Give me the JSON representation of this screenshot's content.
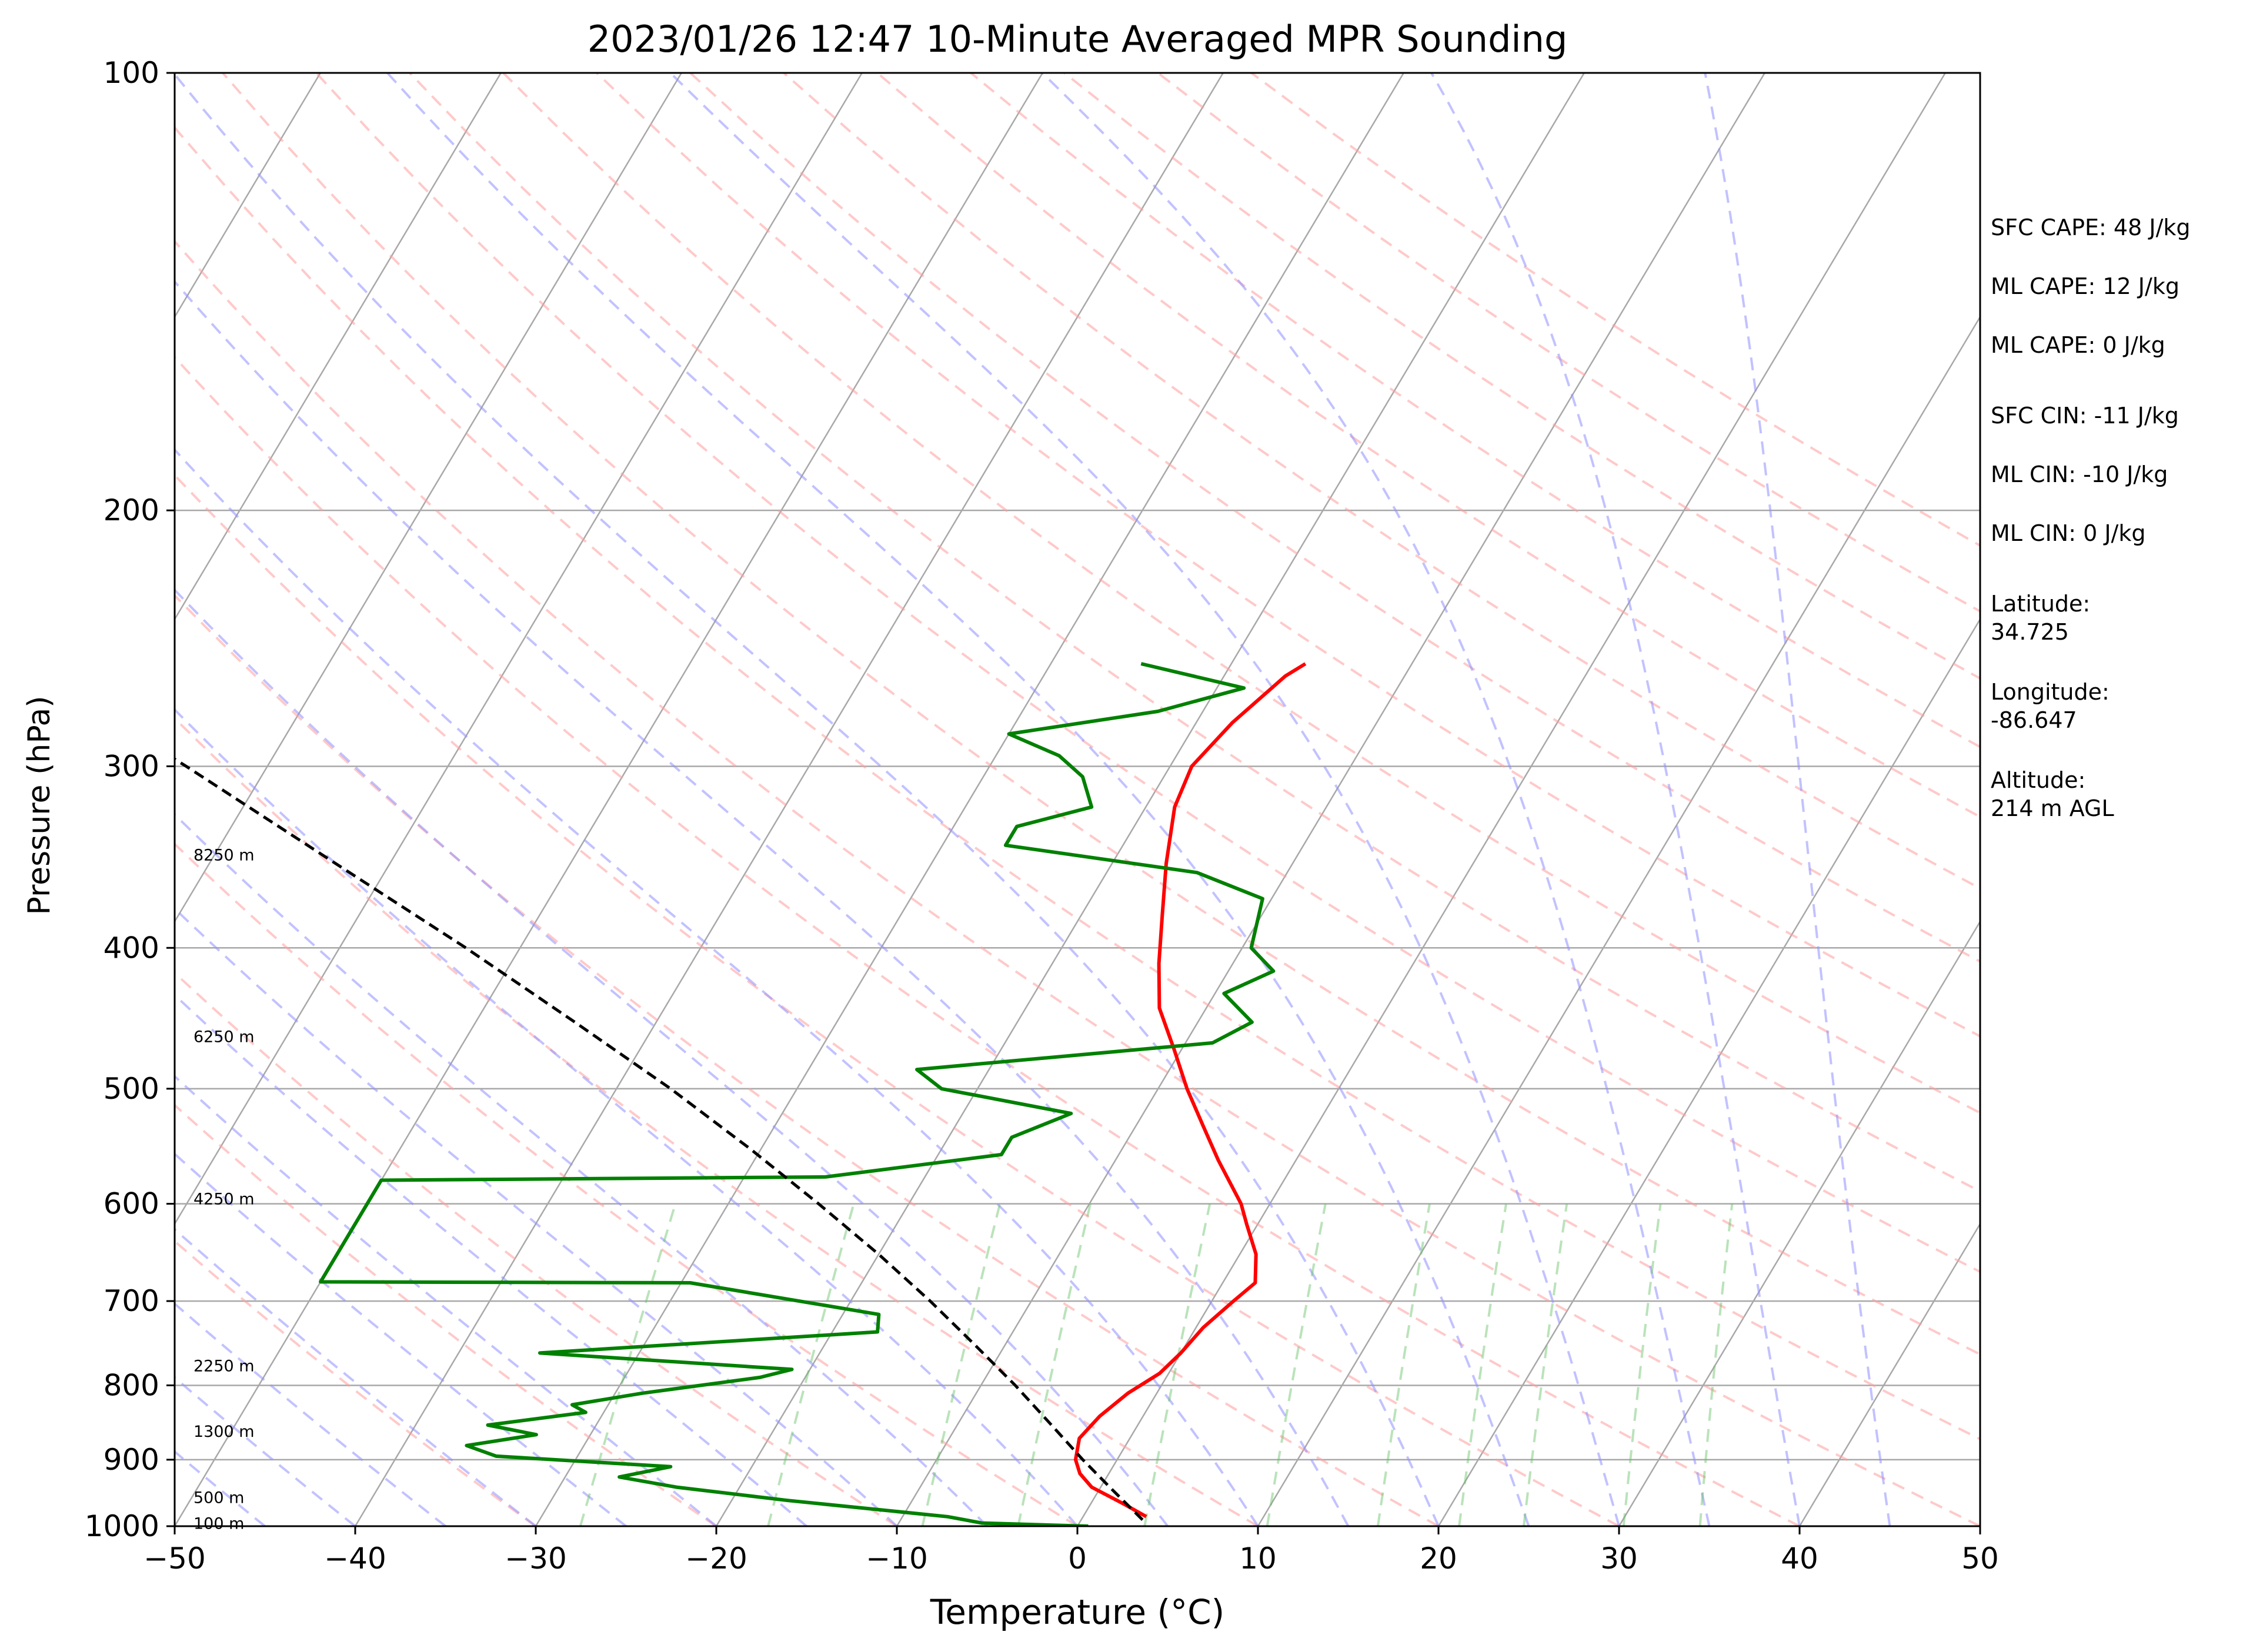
{
  "chart_data": {
    "type": "line",
    "title": "2023/01/26 12:47 10-Minute Averaged MPR Sounding",
    "xlabel": "Temperature (°C)",
    "ylabel": "Pressure (hPa)",
    "xlim": [
      -50,
      50
    ],
    "ylim": [
      1000,
      100
    ],
    "y_scale": "log",
    "skew": true,
    "grid": true,
    "x_ticks": [
      -50,
      -40,
      -30,
      -20,
      -10,
      0,
      10,
      20,
      30,
      40,
      50
    ],
    "y_ticks": [
      100,
      200,
      300,
      400,
      500,
      600,
      700,
      800,
      900,
      1000
    ],
    "series": [
      {
        "color": "#ff0000",
        "points": [
          {
            "p": 985,
            "t": 3.5
          },
          {
            "p": 965,
            "t": 1.8
          },
          {
            "p": 940,
            "t": -0.5
          },
          {
            "p": 920,
            "t": -1.6
          },
          {
            "p": 900,
            "t": -2.3
          },
          {
            "p": 870,
            "t": -2.8
          },
          {
            "p": 840,
            "t": -2.4
          },
          {
            "p": 810,
            "t": -1.6
          },
          {
            "p": 785,
            "t": -0.5
          },
          {
            "p": 760,
            "t": 0.0
          },
          {
            "p": 730,
            "t": 0.4
          },
          {
            "p": 700,
            "t": 1.2
          },
          {
            "p": 680,
            "t": 1.8
          },
          {
            "p": 650,
            "t": 0.9
          },
          {
            "p": 620,
            "t": -0.6
          },
          {
            "p": 600,
            "t": -1.6
          },
          {
            "p": 560,
            "t": -4.3
          },
          {
            "p": 530,
            "t": -6.3
          },
          {
            "p": 500,
            "t": -8.4
          },
          {
            "p": 470,
            "t": -10.4
          },
          {
            "p": 440,
            "t": -12.6
          },
          {
            "p": 410,
            "t": -14.1
          },
          {
            "p": 380,
            "t": -15.5
          },
          {
            "p": 350,
            "t": -17.0
          },
          {
            "p": 320,
            "t": -18.4
          },
          {
            "p": 300,
            "t": -18.8
          },
          {
            "p": 280,
            "t": -18.0
          },
          {
            "p": 260,
            "t": -16.6
          },
          {
            "p": 255,
            "t": -15.9
          }
        ]
      },
      {
        "color": "#008000",
        "points": [
          {
            "p": 1000,
            "t": 0.6
          },
          {
            "p": 995,
            "t": -5.4
          },
          {
            "p": 985,
            "t": -7.5
          },
          {
            "p": 960,
            "t": -16.9
          },
          {
            "p": 940,
            "t": -23.5
          },
          {
            "p": 925,
            "t": -27.0
          },
          {
            "p": 910,
            "t": -24.5
          },
          {
            "p": 895,
            "t": -34.5
          },
          {
            "p": 880,
            "t": -36.5
          },
          {
            "p": 865,
            "t": -33.0
          },
          {
            "p": 852,
            "t": -36.0
          },
          {
            "p": 835,
            "t": -31.0
          },
          {
            "p": 825,
            "t": -32.0
          },
          {
            "p": 810,
            "t": -28.5
          },
          {
            "p": 790,
            "t": -22.5
          },
          {
            "p": 780,
            "t": -21.0
          },
          {
            "p": 760,
            "t": -35.5
          },
          {
            "p": 735,
            "t": -17.5
          },
          {
            "p": 715,
            "t": -18.0
          },
          {
            "p": 680,
            "t": -29.5
          },
          {
            "p": 679,
            "t": -50.0
          },
          {
            "p": 578,
            "t": -50.0
          },
          {
            "p": 575,
            "t": -25.5
          },
          {
            "p": 555,
            "t": -16.5
          },
          {
            "p": 540,
            "t": -16.5
          },
          {
            "p": 520,
            "t": -14.0
          },
          {
            "p": 500,
            "t": -22.0
          },
          {
            "p": 485,
            "t": -24.0
          },
          {
            "p": 465,
            "t": -8.5
          },
          {
            "p": 450,
            "t": -7.0
          },
          {
            "p": 430,
            "t": -9.5
          },
          {
            "p": 415,
            "t": -7.5
          },
          {
            "p": 400,
            "t": -9.5
          },
          {
            "p": 370,
            "t": -10.5
          },
          {
            "p": 355,
            "t": -15.0
          },
          {
            "p": 340,
            "t": -26.5
          },
          {
            "p": 330,
            "t": -26.5
          },
          {
            "p": 320,
            "t": -23.0
          },
          {
            "p": 305,
            "t": -24.5
          },
          {
            "p": 295,
            "t": -26.5
          },
          {
            "p": 285,
            "t": -30.0
          },
          {
            "p": 275,
            "t": -22.5
          },
          {
            "p": 265,
            "t": -18.5
          },
          {
            "p": 255,
            "t": -25.0
          }
        ]
      },
      {
        "style": "dashed",
        "color": "#000000",
        "points": [
          {
            "p": 990,
            "t": 3.4
          },
          {
            "p": 940,
            "t": 0.5
          },
          {
            "p": 900,
            "t": -1.9
          },
          {
            "p": 850,
            "t": -4.9
          },
          {
            "p": 800,
            "t": -8.1
          },
          {
            "p": 750,
            "t": -11.7
          },
          {
            "p": 700,
            "t": -15.6
          },
          {
            "p": 650,
            "t": -20.0
          },
          {
            "p": 600,
            "t": -25.0
          },
          {
            "p": 550,
            "t": -30.6
          },
          {
            "p": 500,
            "t": -37.0
          },
          {
            "p": 450,
            "t": -44.5
          },
          {
            "p": 400,
            "t": -53.0
          },
          {
            "p": 350,
            "t": -63.0
          },
          {
            "p": 300,
            "t": -74.5
          },
          {
            "p": 265,
            "t": -84.0
          }
        ]
      }
    ],
    "height_labels": [
      {
        "p": 995,
        "label": "100 m"
      },
      {
        "p": 955,
        "label": "500 m"
      },
      {
        "p": 860,
        "label": "1300 m"
      },
      {
        "p": 775,
        "label": "2250 m"
      },
      {
        "p": 595,
        "label": "4250 m"
      },
      {
        "p": 460,
        "label": "6250 m"
      },
      {
        "p": 345,
        "label": "8250 m"
      }
    ],
    "annotations": [
      "SFC CAPE: 48 J/kg",
      "ML CAPE: 12 J/kg",
      "ML CAPE: 0 J/kg",
      "SFC CIN: -11 J/kg",
      "ML CIN: -10 J/kg",
      "ML CIN: 0 J/kg",
      "Latitude:",
      "34.725",
      "Longitude:",
      "-86.647",
      "Altitude:",
      "214 m AGL"
    ]
  }
}
